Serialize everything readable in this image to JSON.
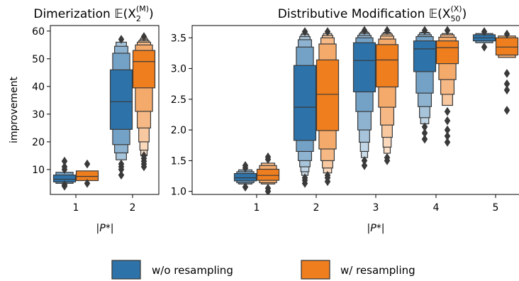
{
  "colors": {
    "without_resampling": "#2d72a8",
    "with_resampling": "#ef7e1e",
    "outline": "#3a3a3a"
  },
  "legend": {
    "position": "bottom-center",
    "entries": [
      {
        "label": "w/o resampling",
        "color": "#2d72a8"
      },
      {
        "label": "w/ resampling",
        "color": "#ef7e1e"
      }
    ]
  },
  "chart_data": [
    {
      "type": "boxenplot",
      "title_main": "Dimerization 𝔼(X",
      "title_sub": "2",
      "title_sup": "(M)",
      "title_end": ")",
      "xlabel": "|P*|",
      "ylabel": "improvement",
      "ylim": [
        1,
        62
      ],
      "yticks": [
        10,
        20,
        30,
        40,
        50,
        60
      ],
      "categories": [
        "1",
        "2"
      ],
      "series": [
        {
          "name": "w/o resampling",
          "groups": [
            {
              "category": "1",
              "median": 6.5,
              "boxes": [
                [
                  5.5,
                  8
                ],
                [
                  5,
                  9
                ]
              ],
              "outliers": [
                4,
                4.5,
                10,
                11,
                13
              ]
            },
            {
              "category": "2",
              "median": 34.5,
              "boxes": [
                [
                  24.5,
                  46
                ],
                [
                  19,
                  52
                ],
                [
                  16,
                  54.5
                ],
                [
                  13.5,
                  56
                ]
              ],
              "outliers": [
                8,
                10,
                11,
                12,
                57
              ]
            }
          ]
        },
        {
          "name": "w/ resampling",
          "groups": [
            {
              "category": "1",
              "median": 7.5,
              "boxes": [
                [
                  6,
                  9.5
                ]
              ],
              "outliers": [
                5,
                12
              ]
            },
            {
              "category": "2",
              "median": 49,
              "boxes": [
                [
                  39.5,
                  53
                ],
                [
                  31,
                  55
                ],
                [
                  25,
                  56
                ],
                [
                  20,
                  56.5
                ],
                [
                  17,
                  57
                ],
                [
                  15,
                  57.5
                ]
              ],
              "outliers": [
                11,
                12,
                13,
                14,
                15,
                58
              ]
            }
          ]
        }
      ]
    },
    {
      "type": "boxenplot",
      "title_main": "Distributive Modification 𝔼(X",
      "title_sub": "50",
      "title_sup": "(X)",
      "title_end": ")",
      "xlabel": "|P*|",
      "ylabel": "",
      "ylim": [
        0.95,
        3.7
      ],
      "yticks": [
        1.0,
        1.5,
        2.0,
        2.5,
        3.0,
        3.5
      ],
      "categories": [
        "1",
        "2",
        "3",
        "4",
        "5"
      ],
      "series": [
        {
          "name": "w/o resampling",
          "groups": [
            {
              "category": "1",
              "median": 1.22,
              "boxes": [
                [
                  1.17,
                  1.29
                ],
                [
                  1.14,
                  1.32
                ],
                [
                  1.12,
                  1.35
                ]
              ],
              "outliers": [
                1.07,
                1.38,
                1.42
              ]
            },
            {
              "category": "2",
              "median": 2.37,
              "boxes": [
                [
                  1.83,
                  3.05
                ],
                [
                  1.65,
                  3.35
                ],
                [
                  1.5,
                  3.47
                ],
                [
                  1.4,
                  3.52
                ],
                [
                  1.32,
                  3.55
                ],
                [
                  1.26,
                  3.57
                ]
              ],
              "outliers": [
                1.13,
                1.18,
                1.22,
                3.6
              ]
            },
            {
              "category": "3",
              "median": 3.13,
              "boxes": [
                [
                  2.62,
                  3.42
                ],
                [
                  2.3,
                  3.5
                ],
                [
                  2.0,
                  3.54
                ],
                [
                  1.8,
                  3.57
                ],
                [
                  1.65,
                  3.59
                ],
                [
                  1.55,
                  3.6
                ]
              ],
              "outliers": [
                1.42,
                1.5,
                3.62
              ]
            },
            {
              "category": "4",
              "median": 3.32,
              "boxes": [
                [
                  2.95,
                  3.45
                ],
                [
                  2.6,
                  3.52
                ],
                [
                  2.38,
                  3.55
                ],
                [
                  2.2,
                  3.58
                ],
                [
                  2.1,
                  3.59
                ]
              ],
              "outliers": [
                1.85,
                1.95,
                2.05,
                3.62
              ]
            },
            {
              "category": "5",
              "median": 3.5,
              "boxes": [
                [
                  3.45,
                  3.55
                ],
                [
                  3.42,
                  3.57
                ]
              ],
              "outliers": [
                3.35,
                3.6
              ]
            }
          ]
        },
        {
          "name": "w/ resampling",
          "groups": [
            {
              "category": "1",
              "median": 1.26,
              "boxes": [
                [
                  1.18,
                  1.36
                ],
                [
                  1.14,
                  1.42
                ],
                [
                  1.12,
                  1.46
                ]
              ],
              "outliers": [
                1.0,
                1.05,
                1.52,
                1.56
              ]
            },
            {
              "category": "2",
              "median": 2.58,
              "boxes": [
                [
                  1.99,
                  3.14
                ],
                [
                  1.69,
                  3.4
                ],
                [
                  1.5,
                  3.5
                ],
                [
                  1.38,
                  3.54
                ],
                [
                  1.3,
                  3.57
                ]
              ],
              "outliers": [
                1.16,
                1.22,
                1.26,
                3.6
              ]
            },
            {
              "category": "3",
              "median": 3.14,
              "boxes": [
                [
                  2.7,
                  3.39
                ],
                [
                  2.37,
                  3.48
                ],
                [
                  2.08,
                  3.53
                ],
                [
                  1.88,
                  3.56
                ],
                [
                  1.72,
                  3.58
                ],
                [
                  1.62,
                  3.59
                ]
              ],
              "outliers": [
                1.5,
                1.55,
                3.62
              ]
            },
            {
              "category": "4",
              "median": 3.34,
              "boxes": [
                [
                  3.08,
                  3.45
                ],
                [
                  2.82,
                  3.51
                ],
                [
                  2.58,
                  3.55
                ],
                [
                  2.4,
                  3.57
                ]
              ],
              "outliers": [
                1.8,
                1.9,
                2.0,
                2.15,
                2.3,
                3.62
              ]
            },
            {
              "category": "5",
              "median": 3.35,
              "boxes": [
                [
                  3.22,
                  3.5
                ],
                [
                  3.18,
                  3.53
                ]
              ],
              "outliers": [
                2.32,
                2.65,
                2.75,
                2.92,
                3.56
              ]
            }
          ]
        }
      ]
    }
  ]
}
